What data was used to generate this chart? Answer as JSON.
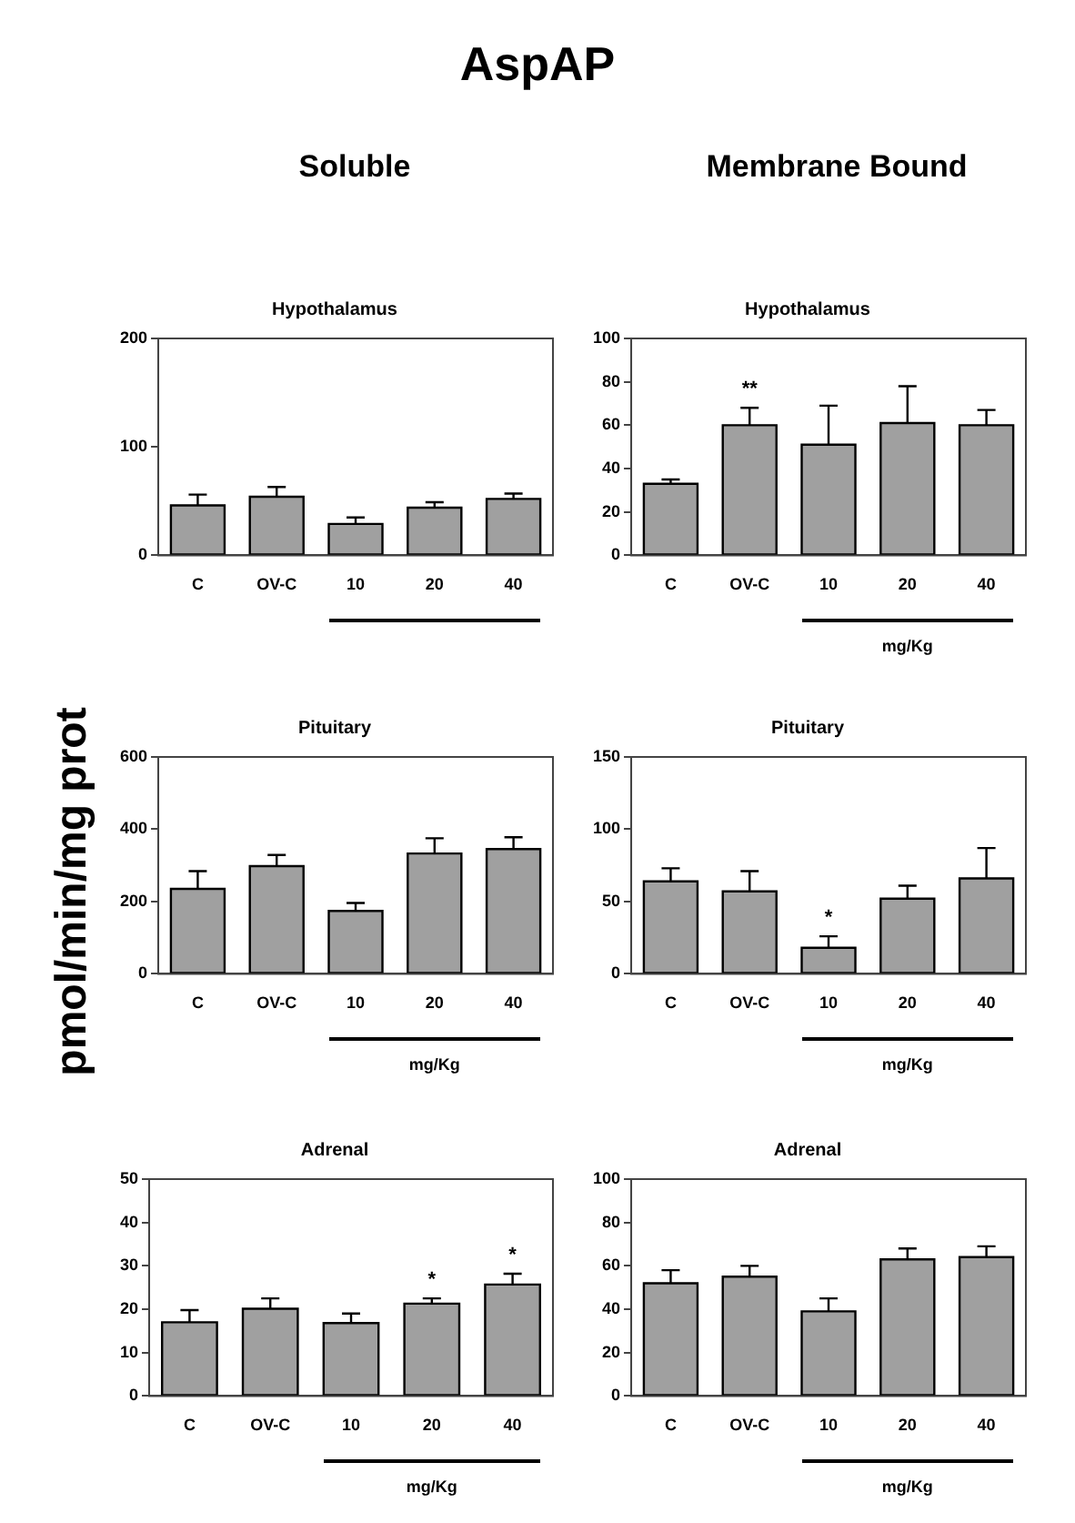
{
  "chart_data": [
    {
      "type": "other",
      "title": "AspAP",
      "annotations": [
        "Soluble",
        "Membrane Bound",
        "pmol/min/mg prot"
      ]
    },
    {
      "type": "bar",
      "title": "Hypothalamus",
      "categories": [
        "C",
        "OV-C",
        "10",
        "20",
        "40"
      ],
      "values": [
        46,
        54,
        29,
        44,
        52
      ],
      "errors": [
        10,
        9,
        6,
        5,
        5
      ],
      "color": "#a0a0a0",
      "ylim": [
        0,
        200
      ],
      "yticks": [
        0,
        100,
        200
      ]
    },
    {
      "type": "bar",
      "title": "Hypothalamus",
      "xlabel": "mg/Kg",
      "categories": [
        "C",
        "OV-C",
        "10",
        "20",
        "40"
      ],
      "values": [
        33,
        60,
        51,
        61,
        60
      ],
      "errors": [
        2,
        8,
        18,
        17,
        7
      ],
      "color": "#a0a0a0",
      "ylim": [
        0,
        100
      ],
      "yticks": [
        0,
        20,
        40,
        60,
        80,
        100
      ],
      "annotations": [
        {
          "text": "**",
          "x": "OV-C",
          "y": 60
        }
      ]
    },
    {
      "type": "bar",
      "title": "Pituitary",
      "xlabel": "mg/Kg",
      "categories": [
        "C",
        "OV-C",
        "10",
        "20",
        "40"
      ],
      "values": [
        235,
        298,
        174,
        333,
        345
      ],
      "errors": [
        49,
        31,
        22,
        42,
        33
      ],
      "color": "#a0a0a0",
      "ylim": [
        0,
        600
      ],
      "yticks": [
        0,
        200,
        400,
        600
      ]
    },
    {
      "type": "bar",
      "title": "Pituitary",
      "xlabel": "mg/Kg",
      "categories": [
        "C",
        "OV-C",
        "10",
        "20",
        "40"
      ],
      "values": [
        64,
        57,
        18,
        52,
        66
      ],
      "errors": [
        9,
        14,
        8,
        9,
        21
      ],
      "color": "#a0a0a0",
      "ylim": [
        0,
        150
      ],
      "yticks": [
        0,
        50,
        100,
        150
      ],
      "annotations": [
        {
          "text": "*",
          "x": "10",
          "y": 18
        }
      ]
    },
    {
      "type": "bar",
      "title": "Adrenal",
      "xlabel": "mg/Kg",
      "categories": [
        "C",
        "OV-C",
        "10",
        "20",
        "40"
      ],
      "values": [
        17,
        20.1,
        16.8,
        21.3,
        25.7
      ],
      "errors": [
        2.8,
        2.4,
        2.2,
        1.2,
        2.5
      ],
      "color": "#a0a0a0",
      "ylim": [
        0,
        50
      ],
      "yticks": [
        0,
        10,
        20,
        30,
        40,
        50
      ],
      "annotations": [
        {
          "text": "*",
          "x": "20",
          "y": 21.3
        },
        {
          "text": "*",
          "x": "40",
          "y": 25.7
        }
      ]
    },
    {
      "type": "bar",
      "title": "Adrenal",
      "xlabel": "mg/Kg",
      "categories": [
        "C",
        "OV-C",
        "10",
        "20",
        "40"
      ],
      "values": [
        52,
        55,
        39,
        63,
        64
      ],
      "errors": [
        6,
        5,
        6,
        5,
        5
      ],
      "color": "#a0a0a0",
      "ylim": [
        0,
        100
      ],
      "yticks": [
        0,
        20,
        40,
        60,
        80,
        100
      ]
    }
  ]
}
